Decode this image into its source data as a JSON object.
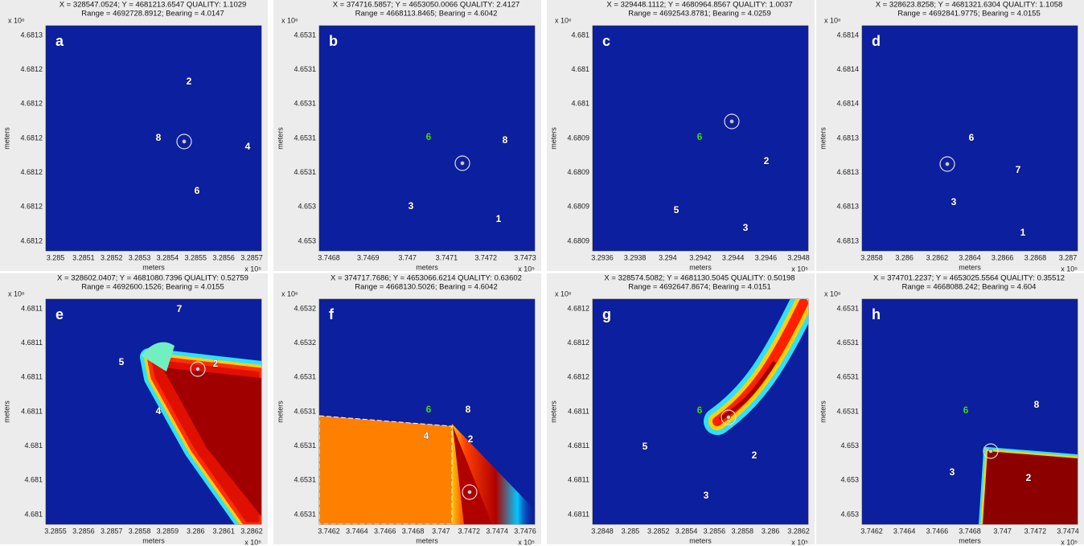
{
  "panels": [
    {
      "letter": "a",
      "header": [
        "X = 328547.0524; Y = 4681213.6547  QUALITY: 1.1029",
        "Range = 4692728.8912; Bearing = 4.0147"
      ],
      "y_exponent": "x 10⁶",
      "y_label": "meters",
      "y_ticks": [
        "4.6813",
        "4.6812",
        "4.6812",
        "4.6812",
        "4.6812",
        "4.6812",
        "4.6812"
      ],
      "x_ticks": [
        "3.285",
        "3.2851",
        "3.2852",
        "3.2853",
        "3.2854",
        "3.2855",
        "3.2856",
        "3.2857"
      ],
      "x_label": "meters",
      "x_exponent": "x 10⁵",
      "nodes": [
        {
          "label": "2",
          "color": "#ffffff"
        },
        {
          "label": "8",
          "color": "#ffffff"
        },
        {
          "label": "4",
          "color": "#ffffff"
        },
        {
          "label": "6",
          "color": "#ffffff"
        }
      ]
    },
    {
      "letter": "b",
      "header": [
        "X = 374716.5857; Y = 4653050.0066  QUALITY: 2.4127",
        "Range = 4668113.8465; Bearing = 4.6042"
      ],
      "y_exponent": "x 10⁶",
      "y_label": "meters",
      "y_ticks": [
        "4.6531",
        "4.6531",
        "4.6531",
        "4.6531",
        "4.6531",
        "4.653",
        "4.653"
      ],
      "x_ticks": [
        "3.7468",
        "3.7469",
        "3.747",
        "3.7471",
        "3.7472",
        "3.7473"
      ],
      "x_label": "meters",
      "x_exponent": "x 10⁵",
      "nodes": [
        {
          "label": "6",
          "color": "#3cd23c"
        },
        {
          "label": "8",
          "color": "#ffffff"
        },
        {
          "label": "3",
          "color": "#ffffff"
        },
        {
          "label": "1",
          "color": "#ffffff"
        }
      ]
    },
    {
      "letter": "c",
      "header": [
        "X = 329448.1112; Y = 4680964.8567  QUALITY: 1.0037",
        "Range = 4692543.8781; Bearing = 4.0259"
      ],
      "y_exponent": "x 10⁶",
      "y_label": "meters",
      "y_ticks": [
        "4.681",
        "4.681",
        "4.681",
        "4.6809",
        "4.6809",
        "4.6809",
        "4.6809"
      ],
      "x_ticks": [
        "3.2936",
        "3.2938",
        "3.294",
        "3.2942",
        "3.2944",
        "3.2946",
        "3.2948"
      ],
      "x_label": "meters",
      "x_exponent": "x 10⁵",
      "nodes": [
        {
          "label": "6",
          "color": "#3cd23c"
        },
        {
          "label": "2",
          "color": "#ffffff"
        },
        {
          "label": "5",
          "color": "#ffffff"
        },
        {
          "label": "3",
          "color": "#ffffff"
        }
      ]
    },
    {
      "letter": "d",
      "header": [
        "X = 328623.8258; Y = 4681321.6304  QUALITY: 1.1058",
        "Range = 4692841.9775; Bearing = 4.0155"
      ],
      "y_exponent": "x 10⁶",
      "y_label": "meters",
      "y_ticks": [
        "4.6814",
        "4.6814",
        "4.6814",
        "4.6813",
        "4.6813",
        "4.6813",
        "4.6813"
      ],
      "x_ticks": [
        "3.2858",
        "3.286",
        "3.2862",
        "3.2864",
        "3.2866",
        "3.2868",
        "3.287"
      ],
      "x_label": "meters",
      "x_exponent": "x 10⁵",
      "nodes": [
        {
          "label": "6",
          "color": "#ffffff"
        },
        {
          "label": "7",
          "color": "#ffffff"
        },
        {
          "label": "3",
          "color": "#ffffff"
        },
        {
          "label": "1",
          "color": "#ffffff"
        }
      ]
    },
    {
      "letter": "e",
      "header": [
        "X = 328602.0407; Y = 4681080.7396  QUALITY: 0.52759",
        "Range = 4692600.1526; Bearing = 4.0155"
      ],
      "y_exponent": "x 10⁶",
      "y_label": "meters",
      "y_ticks": [
        "4.6811",
        "4.6811",
        "4.6811",
        "4.6811",
        "4.681",
        "4.681",
        "4.681"
      ],
      "x_ticks": [
        "3.2855",
        "3.2856",
        "3.2857",
        "3.2858",
        "3.2859",
        "3.286",
        "3.2861",
        "3.2862"
      ],
      "x_label": "meters",
      "x_exponent": "x 10⁵",
      "nodes": [
        {
          "label": "7",
          "color": "#ffffff"
        },
        {
          "label": "5",
          "color": "#ffffff"
        },
        {
          "label": "2",
          "color": "#ffffff"
        },
        {
          "label": "4",
          "color": "#ffffff"
        }
      ]
    },
    {
      "letter": "f",
      "header": [
        "X = 374717.7686; Y = 4653066.6214  QUALITY: 0.63602",
        "Range = 4668130.5026; Bearing = 4.6042"
      ],
      "y_exponent": "x 10⁶",
      "y_label": "meters",
      "y_ticks": [
        "4.6532",
        "4.6532",
        "4.6531",
        "4.6531",
        "4.6531",
        "4.6531",
        "4.6531"
      ],
      "x_ticks": [
        "3.7462",
        "3.7464",
        "3.7466",
        "3.7468",
        "3.747",
        "3.7472",
        "3.7474",
        "3.7476"
      ],
      "x_label": "meters",
      "x_exponent": "x 10⁵",
      "nodes": [
        {
          "label": "6",
          "color": "#3cd23c"
        },
        {
          "label": "8",
          "color": "#ffffff"
        },
        {
          "label": "4",
          "color": "#ffffff"
        },
        {
          "label": "2",
          "color": "#ffffff"
        }
      ]
    },
    {
      "letter": "g",
      "header": [
        "X = 328574.5082; Y = 4681130.5045  QUALITY: 0.50198",
        "Range = 4692647.8674; Bearing = 4.0151"
      ],
      "y_exponent": "x 10⁶",
      "y_label": "meters",
      "y_ticks": [
        "4.6812",
        "4.6812",
        "4.6812",
        "4.6811",
        "4.6811",
        "4.6811",
        "4.6811"
      ],
      "x_ticks": [
        "3.2848",
        "3.285",
        "3.2852",
        "3.2854",
        "3.2856",
        "3.2858",
        "3.286",
        "3.2862"
      ],
      "x_label": "meters",
      "x_exponent": "x 10⁵",
      "nodes": [
        {
          "label": "6",
          "color": "#3cd23c"
        },
        {
          "label": "5",
          "color": "#ffffff"
        },
        {
          "label": "2",
          "color": "#ffffff"
        },
        {
          "label": "3",
          "color": "#ffffff"
        }
      ]
    },
    {
      "letter": "h",
      "header": [
        "X = 374701.2237; Y = 4653025.5564  QUALITY: 0.35512",
        "Range = 4668088.242; Bearing = 4.604"
      ],
      "y_exponent": "x 10⁶",
      "y_label": "meters",
      "y_ticks": [
        "4.6531",
        "4.6531",
        "4.6531",
        "4.6531",
        "4.653",
        "4.653",
        "4.653"
      ],
      "x_ticks": [
        "3.7462",
        "3.7464",
        "3.7466",
        "3.7468",
        "3.747",
        "3.7472",
        "3.7474"
      ],
      "x_label": "meters",
      "x_exponent": "x 10⁵",
      "nodes": [
        {
          "label": "6",
          "color": "#3cd23c"
        },
        {
          "label": "8",
          "color": "#ffffff"
        },
        {
          "label": "3",
          "color": "#ffffff"
        },
        {
          "label": "2",
          "color": "#ffffff"
        }
      ]
    }
  ]
}
